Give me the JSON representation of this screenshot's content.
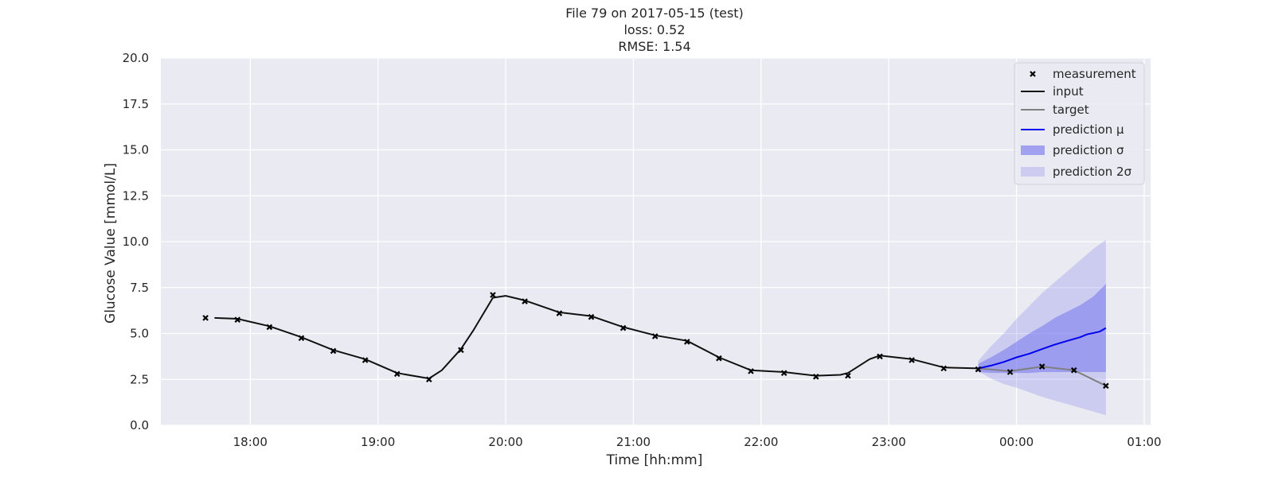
{
  "chart_data": {
    "type": "line",
    "title_lines": [
      "File 79 on 2017-05-15 (test)",
      "loss: 0.52",
      "RMSE: 1.54"
    ],
    "xlabel": "Time [hh:mm]",
    "ylabel": "Glucose Value [mmol/L]",
    "x_unit": "hours since 00:00 on 2017-05-15",
    "xlim": [
      17.3,
      25.05
    ],
    "ylim": [
      0,
      20
    ],
    "x_ticks": [
      {
        "v": 18,
        "label": "18:00"
      },
      {
        "v": 19,
        "label": "19:00"
      },
      {
        "v": 20,
        "label": "20:00"
      },
      {
        "v": 21,
        "label": "21:00"
      },
      {
        "v": 22,
        "label": "22:00"
      },
      {
        "v": 23,
        "label": "23:00"
      },
      {
        "v": 24,
        "label": "00:00"
      },
      {
        "v": 25,
        "label": "01:00"
      }
    ],
    "y_ticks": [
      {
        "v": 0,
        "label": "0.0"
      },
      {
        "v": 2.5,
        "label": "2.5"
      },
      {
        "v": 5,
        "label": "5.0"
      },
      {
        "v": 7.5,
        "label": "7.5"
      },
      {
        "v": 10,
        "label": "10.0"
      },
      {
        "v": 12.5,
        "label": "12.5"
      },
      {
        "v": 15,
        "label": "15.0"
      },
      {
        "v": 17.5,
        "label": "17.5"
      },
      {
        "v": 20,
        "label": "20.0"
      }
    ],
    "grid": true,
    "legend_position": "top-right",
    "legend": [
      {
        "key": "measurement",
        "label": "measurement"
      },
      {
        "key": "input",
        "label": "input"
      },
      {
        "key": "target",
        "label": "target"
      },
      {
        "key": "mu",
        "label": "prediction μ"
      },
      {
        "key": "sigma",
        "label": "prediction σ"
      },
      {
        "key": "sigma2",
        "label": "prediction 2σ"
      }
    ],
    "colors": {
      "background": "#eaeaf2",
      "grid": "#ffffff",
      "input": "#111111",
      "target": "#808080",
      "mu": "#0000ee",
      "sigma": "#6464ee",
      "sigma2": "#9696ee",
      "text": "#262626"
    },
    "measurements": [
      [
        17.65,
        5.85
      ],
      [
        17.9,
        5.75
      ],
      [
        18.15,
        5.35
      ],
      [
        18.4,
        4.75
      ],
      [
        18.65,
        4.05
      ],
      [
        18.9,
        3.55
      ],
      [
        19.15,
        2.8
      ],
      [
        19.4,
        2.5
      ],
      [
        19.65,
        4.1
      ],
      [
        19.9,
        7.1
      ],
      [
        20.15,
        6.75
      ],
      [
        20.42,
        6.1
      ],
      [
        20.67,
        5.9
      ],
      [
        20.92,
        5.3
      ],
      [
        21.17,
        4.85
      ],
      [
        21.42,
        4.55
      ],
      [
        21.67,
        3.65
      ],
      [
        21.92,
        2.95
      ],
      [
        22.18,
        2.85
      ],
      [
        22.43,
        2.65
      ],
      [
        22.68,
        2.7
      ],
      [
        22.93,
        3.75
      ],
      [
        23.18,
        3.55
      ],
      [
        23.43,
        3.1
      ],
      [
        23.7,
        3.05
      ],
      [
        23.95,
        2.9
      ],
      [
        24.2,
        3.2
      ],
      [
        24.45,
        3.0
      ],
      [
        24.7,
        2.15
      ]
    ],
    "input": [
      [
        17.72,
        5.85
      ],
      [
        17.9,
        5.8
      ],
      [
        18.15,
        5.4
      ],
      [
        18.4,
        4.8
      ],
      [
        18.65,
        4.1
      ],
      [
        18.9,
        3.6
      ],
      [
        19.15,
        2.85
      ],
      [
        19.4,
        2.55
      ],
      [
        19.5,
        3.0
      ],
      [
        19.65,
        4.15
      ],
      [
        19.75,
        5.2
      ],
      [
        19.9,
        6.95
      ],
      [
        20.0,
        7.05
      ],
      [
        20.15,
        6.8
      ],
      [
        20.42,
        6.15
      ],
      [
        20.67,
        5.95
      ],
      [
        20.92,
        5.35
      ],
      [
        21.17,
        4.9
      ],
      [
        21.42,
        4.6
      ],
      [
        21.67,
        3.7
      ],
      [
        21.92,
        3.0
      ],
      [
        22.18,
        2.9
      ],
      [
        22.43,
        2.7
      ],
      [
        22.62,
        2.75
      ],
      [
        22.68,
        2.85
      ],
      [
        22.85,
        3.6
      ],
      [
        22.93,
        3.8
      ],
      [
        23.18,
        3.6
      ],
      [
        23.43,
        3.15
      ],
      [
        23.7,
        3.1
      ]
    ],
    "target": [
      [
        23.7,
        3.1
      ],
      [
        23.95,
        2.95
      ],
      [
        24.2,
        3.2
      ],
      [
        24.45,
        3.0
      ],
      [
        24.7,
        2.15
      ]
    ],
    "prediction_mu": [
      [
        23.7,
        3.1
      ],
      [
        23.8,
        3.25
      ],
      [
        23.9,
        3.45
      ],
      [
        24.0,
        3.7
      ],
      [
        24.1,
        3.9
      ],
      [
        24.2,
        4.15
      ],
      [
        24.3,
        4.4
      ],
      [
        24.4,
        4.6
      ],
      [
        24.5,
        4.8
      ],
      [
        24.55,
        4.95
      ],
      [
        24.65,
        5.1
      ],
      [
        24.7,
        5.3
      ]
    ],
    "prediction_sigma": [
      [
        23.7,
        3.35,
        2.9
      ],
      [
        23.8,
        3.7,
        2.85
      ],
      [
        23.9,
        4.1,
        2.85
      ],
      [
        24.0,
        4.55,
        2.85
      ],
      [
        24.1,
        5.0,
        2.85
      ],
      [
        24.2,
        5.4,
        2.9
      ],
      [
        24.3,
        5.85,
        2.9
      ],
      [
        24.4,
        6.2,
        2.9
      ],
      [
        24.5,
        6.55,
        2.9
      ],
      [
        24.6,
        7.0,
        2.9
      ],
      [
        24.7,
        7.7,
        2.9
      ]
    ],
    "prediction_sigma2": [
      [
        23.7,
        3.5,
        2.95
      ],
      [
        23.8,
        4.3,
        2.55
      ],
      [
        23.9,
        5.0,
        2.25
      ],
      [
        24.0,
        5.8,
        2.05
      ],
      [
        24.1,
        6.5,
        1.8
      ],
      [
        24.2,
        7.2,
        1.55
      ],
      [
        24.3,
        7.8,
        1.35
      ],
      [
        24.4,
        8.4,
        1.15
      ],
      [
        24.5,
        9.0,
        0.95
      ],
      [
        24.6,
        9.6,
        0.75
      ],
      [
        24.7,
        10.1,
        0.55
      ]
    ]
  }
}
